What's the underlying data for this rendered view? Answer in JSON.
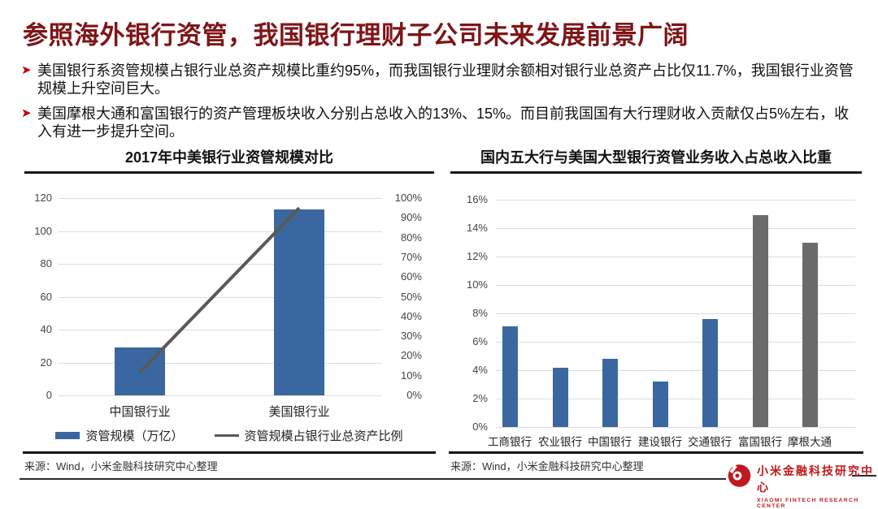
{
  "slide": {
    "title": "参照海外银行资管，我国银行理财子公司未来发展前景广阔",
    "bullets": [
      "美国银行系资管规模占银行业总资产规模比重约95%，而我国银行业理财余额相对银行业总资产占比仅11.7%，我国银行业资管规模上升空间巨大。",
      "美国摩根大通和富国银行的资产管理板块收入分别占总收入的13%、15%。而目前我国国有大行理财收入贡献仅占5%左右，收入有进一步提升空间。"
    ],
    "bullet_marker": "➤"
  },
  "colors": {
    "title_red": "#7f1517",
    "arrow_red": "#c00000",
    "bar_blue": "#3a679f",
    "bar_gray": "#6a6a6a",
    "line_gray": "#595959",
    "logo_red": "#c0181c"
  },
  "left_chart": {
    "source": "来源：Wind，小米金融科技研究中心整理"
  },
  "right_chart": {
    "source": "来源：Wind，小米金融科技研究中心整理"
  },
  "footer": {
    "logo_cn": "小米金融科技研究中心",
    "logo_en": "XIAOMI FINTECH RESEARCH CENTER"
  },
  "chart_data": [
    {
      "type": "bar",
      "title": "2017年中美银行业资管规模对比",
      "categories": [
        "中国银行业",
        "美国银行业"
      ],
      "series": [
        {
          "name": "资管规模（万亿）",
          "kind": "bar",
          "axis": "left",
          "values": [
            29,
            113
          ],
          "color_key": "bar_blue"
        },
        {
          "name": "资管规模占银行业总资产比例",
          "kind": "line",
          "axis": "right",
          "values": [
            11.7,
            95
          ],
          "color_key": "line_gray"
        }
      ],
      "left_axis": {
        "min": 0,
        "max": 120,
        "step": 20,
        "suffix": ""
      },
      "right_axis": {
        "min": 0,
        "max": 100,
        "step": 10,
        "suffix": "%"
      },
      "grid": true,
      "legend_position": "bottom"
    },
    {
      "type": "bar",
      "title": "国内五大行与美国大型银行资管业务收入占总收入比重",
      "categories": [
        "工商银行",
        "农业银行",
        "中国银行",
        "建设银行",
        "交通银行",
        "富国银行",
        "摩根大通"
      ],
      "values": [
        7.1,
        4.2,
        4.8,
        3.2,
        7.6,
        14.9,
        13.0
      ],
      "bar_color_keys": [
        "bar_blue",
        "bar_blue",
        "bar_blue",
        "bar_blue",
        "bar_blue",
        "bar_gray",
        "bar_gray"
      ],
      "y_axis": {
        "min": 0,
        "max": 16,
        "step": 2,
        "suffix": "%"
      },
      "grid": true,
      "legend_position": "none"
    }
  ]
}
